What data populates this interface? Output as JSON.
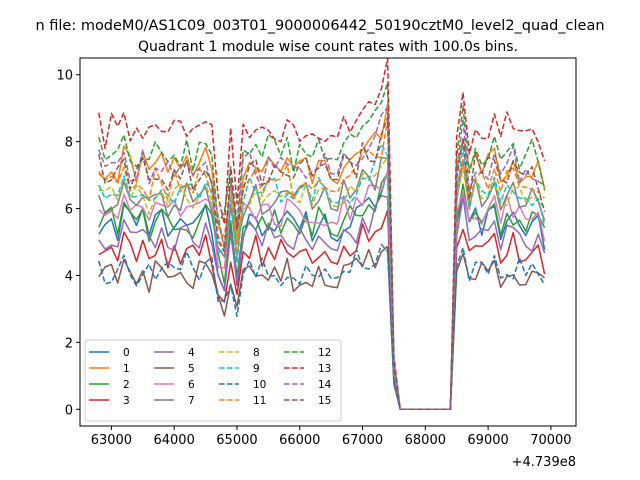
{
  "suptitle": "n file: modeM0/AS1C09_003T01_9000006442_50190cztM0_level2_quad_clean",
  "chart_data": {
    "type": "line",
    "title": "Quadrant 1 module wise count rates with 100.0s bins.",
    "xlabel": "",
    "ylabel": "",
    "x_offset_label": "+4.739e8",
    "xlim": [
      62500,
      70400
    ],
    "ylim": [
      -0.5,
      10.5
    ],
    "xticks": [
      63000,
      64000,
      65000,
      66000,
      67000,
      68000,
      69000,
      70000
    ],
    "xtick_labels": [
      "63000",
      "64000",
      "65000",
      "66000",
      "67000",
      "68000",
      "69000",
      "70000"
    ],
    "yticks": [
      0,
      2,
      4,
      6,
      8,
      10
    ],
    "ytick_labels": [
      "0",
      "2",
      "4",
      "6",
      "8",
      "10"
    ],
    "grid": false,
    "legend": {
      "placement": "lower-left",
      "columns": 4
    },
    "profile_x": [
      62800,
      62900,
      63000,
      63100,
      63200,
      63300,
      63400,
      63500,
      63600,
      63700,
      63800,
      63900,
      64000,
      64100,
      64200,
      64300,
      64400,
      64500,
      64600,
      64700,
      64800,
      64900,
      65000,
      65100,
      65200,
      65300,
      65400,
      65500,
      65600,
      65700,
      65800,
      65900,
      66000,
      66100,
      66200,
      66300,
      66400,
      66500,
      66600,
      66700,
      66800,
      66900,
      67000,
      67100,
      67200,
      67300,
      67400,
      67500,
      67600,
      68400,
      68500,
      68600,
      68700,
      68800,
      68900,
      69000,
      69100,
      69200,
      69300,
      69400,
      69500,
      69600,
      69700,
      69800,
      69900
    ],
    "profile": [
      0.97,
      0.93,
      0.96,
      0.94,
      0.98,
      0.95,
      0.94,
      0.97,
      0.92,
      0.95,
      0.96,
      0.93,
      0.95,
      0.94,
      0.97,
      0.93,
      0.95,
      0.98,
      0.94,
      0.72,
      0.68,
      0.93,
      0.7,
      0.94,
      0.96,
      0.95,
      0.93,
      0.96,
      0.95,
      0.94,
      0.97,
      0.93,
      0.95,
      0.96,
      0.94,
      0.97,
      0.95,
      0.96,
      0.94,
      0.98,
      0.97,
      0.99,
      1.02,
      1.04,
      1.06,
      1.1,
      1.16,
      0.18,
      0.0,
      0.0,
      0.88,
      1.1,
      0.9,
      0.98,
      0.95,
      0.96,
      0.97,
      0.95,
      0.96,
      0.98,
      0.94,
      0.97,
      0.95,
      0.93,
      0.85
    ],
    "series": [
      {
        "name": "0",
        "color": "#1f77b4",
        "dash": false,
        "level": 5.8
      },
      {
        "name": "1",
        "color": "#ff7f0e",
        "dash": false,
        "level": 7.6
      },
      {
        "name": "2",
        "color": "#2ca02c",
        "dash": false,
        "level": 5.9
      },
      {
        "name": "3",
        "color": "#d62728",
        "dash": false,
        "level": 5.0
      },
      {
        "name": "4",
        "color": "#9467bd",
        "dash": false,
        "level": 5.4
      },
      {
        "name": "5",
        "color": "#8c564b",
        "dash": false,
        "level": 4.2
      },
      {
        "name": "6",
        "color": "#e377c2",
        "dash": false,
        "level": 6.2
      },
      {
        "name": "7",
        "color": "#7f7f7f",
        "dash": false,
        "level": 6.6
      },
      {
        "name": "8",
        "color": "#bcbd22",
        "dash": true,
        "level": 6.7
      },
      {
        "name": "9",
        "color": "#17becf",
        "dash": true,
        "level": 6.8
      },
      {
        "name": "10",
        "color": "#1f77b4",
        "dash": true,
        "level": 4.4
      },
      {
        "name": "11",
        "color": "#ff7f0e",
        "dash": true,
        "level": 7.1
      },
      {
        "name": "12",
        "color": "#2ca02c",
        "dash": true,
        "level": 8.1
      },
      {
        "name": "13",
        "color": "#d62728",
        "dash": true,
        "level": 8.8
      },
      {
        "name": "14",
        "color": "#9467bd",
        "dash": true,
        "level": 7.6
      },
      {
        "name": "15",
        "color": "#8c564b",
        "dash": true,
        "level": 7.4
      }
    ]
  }
}
